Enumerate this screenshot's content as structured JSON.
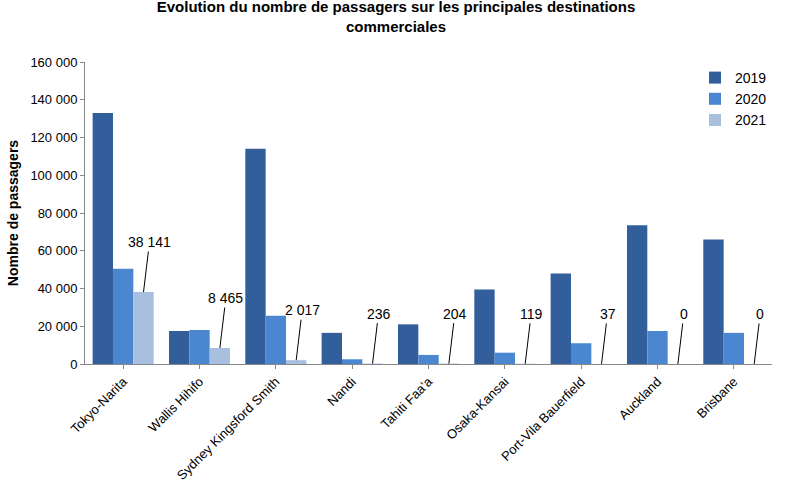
{
  "chart_data": {
    "type": "bar",
    "title": "Evolution du nombre de passagers sur les principales destinations commerciales",
    "y_label": "Nombre de passagers",
    "categories": [
      "Tokyo-Narita",
      "Wallis Hihifo",
      "Sydney Kingsford Smith",
      "Nandi",
      "Tahiti Faa'a",
      "Osaka-Kansai",
      "Port-Vila Bauerfield",
      "Auckland",
      "Brisbane"
    ],
    "series": [
      {
        "name": "2019",
        "color": "#325f9c",
        "values": [
          133000,
          17500,
          114000,
          16500,
          21000,
          39500,
          48000,
          73500,
          66000
        ]
      },
      {
        "name": "2020",
        "color": "#4a87d0",
        "values": [
          50500,
          18000,
          25500,
          2500,
          4800,
          6000,
          11000,
          17500,
          16500
        ]
      },
      {
        "name": "2021",
        "color": "#a9bfe0",
        "values": [
          38141,
          8465,
          2017,
          236,
          204,
          119,
          37,
          0,
          0
        ],
        "value_labels": [
          "38 141",
          "8 465",
          "2 017",
          "236",
          "204",
          "119",
          "37",
          "0",
          "0"
        ],
        "data_labels": true
      }
    ],
    "ylim": [
      0,
      160000
    ],
    "yticks": [
      0,
      {
        "value": 20000,
        "label": "20 000"
      },
      {
        "value": 40000,
        "label": "40 000"
      },
      {
        "value": 60000,
        "label": "60 000"
      },
      {
        "value": 80000,
        "label": "80 000"
      },
      {
        "value": 100000,
        "label": "100 000"
      },
      {
        "value": 120000,
        "label": "120 000"
      },
      {
        "value": 140000,
        "label": "140 000"
      },
      {
        "value": 160000,
        "label": "160 000"
      }
    ],
    "grid": false,
    "legend": "top right"
  }
}
